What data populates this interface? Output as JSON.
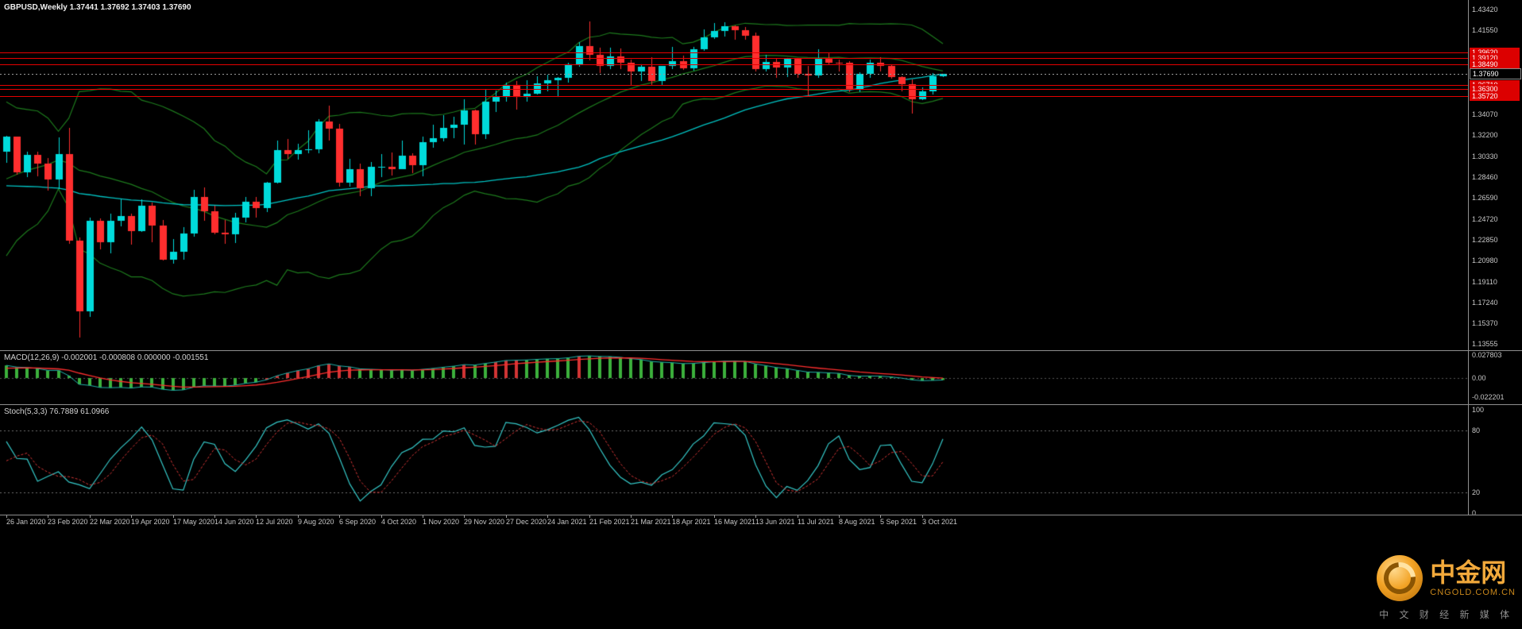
{
  "header": {
    "title": "GBPUSD,Weekly  1.37441 1.37692 1.37403 1.37690"
  },
  "panels": {
    "macd": {
      "label": "MACD(12,26,9) -0.002001 -0.000808 0.000000 -0.001551",
      "axis": [
        "0.027803",
        "0.00",
        "-0.022201"
      ]
    },
    "stoch": {
      "label": "Stoch(5,3,3) 76.7889 61.0966",
      "axis": [
        "100",
        "80",
        "20",
        "0"
      ]
    }
  },
  "watermark": {
    "brand": "中金网",
    "site": "CNGOLD.COM.CN",
    "tagline": "中 文 财 经 新 媒 体"
  },
  "colors": {
    "bull": "#00DBDB",
    "bear": "#FF2E2E",
    "band": "#1D7A1D",
    "ma": "#00C4C4",
    "level": "#E60000",
    "text": "#C8C8C8",
    "bg": "#000000",
    "macd_up": "#3CB03C",
    "macd_down": "#D23535",
    "macd_main": "#20B2AA",
    "signal": "#FF2E2E",
    "stoch_k": "#35C9C9",
    "stoch_d": "#D23535"
  },
  "chart_data": {
    "type": "candlestick",
    "symbol": "GBPUSD",
    "timeframe": "Weekly",
    "current": {
      "open": 1.37441,
      "high": 1.37692,
      "low": 1.37403,
      "close": 1.3769
    },
    "bid": 1.3769,
    "bid_label": "1.37690",
    "price_range": [
      1.13555,
      1.4342
    ],
    "price_ticks": [
      "1.43420",
      "1.41550",
      "1.39680",
      "1.37810",
      "1.35940",
      "1.34070",
      "1.32200",
      "1.30330",
      "1.28460",
      "1.26590",
      "1.24720",
      "1.22850",
      "1.20980",
      "1.19110",
      "1.17240",
      "1.15370",
      "1.13555"
    ],
    "red_levels": [
      1.3962,
      1.3912,
      1.3849,
      1.3671,
      1.363,
      1.3572
    ],
    "x_labels": [
      "26 Jan 2020",
      "23 Feb 2020",
      "22 Mar 2020",
      "19 Apr 2020",
      "17 May 2020",
      "14 Jun 2020",
      "12 Jul 2020",
      "9 Aug 2020",
      "6 Sep 2020",
      "4 Oct 2020",
      "1 Nov 2020",
      "29 Nov 2020",
      "27 Dec 2020",
      "24 Jan 2021",
      "21 Feb 2021",
      "21 Mar 2021",
      "18 Apr 2021",
      "16 May 2021",
      "13 Jun 2021",
      "11 Jul 2021",
      "8 Aug 2021",
      "5 Sep 2021",
      "3 Oct 2021"
    ],
    "x_label_step": 4,
    "candles": [
      [
        1.307,
        1.3215,
        1.2975,
        1.3205
      ],
      [
        1.3205,
        1.321,
        1.287,
        1.289
      ],
      [
        1.289,
        1.307,
        1.2845,
        1.3045
      ],
      [
        1.3045,
        1.307,
        1.285,
        1.2965
      ],
      [
        1.2965,
        1.3015,
        1.2725,
        1.2825
      ],
      [
        1.2825,
        1.32,
        1.274,
        1.305
      ],
      [
        1.305,
        1.3285,
        1.225,
        1.228
      ],
      [
        1.228,
        1.2305,
        1.1412,
        1.1645
      ],
      [
        1.1645,
        1.2485,
        1.16,
        1.2455
      ],
      [
        1.2455,
        1.2475,
        1.22,
        1.2265
      ],
      [
        1.2265,
        1.252,
        1.2165,
        1.2455
      ],
      [
        1.2455,
        1.2645,
        1.2405,
        1.25
      ],
      [
        1.25,
        1.252,
        1.2245,
        1.2365
      ],
      [
        1.2365,
        1.2645,
        1.2355,
        1.259
      ],
      [
        1.259,
        1.262,
        1.2265,
        1.241
      ],
      [
        1.241,
        1.2465,
        1.21,
        1.211
      ],
      [
        1.211,
        1.2295,
        1.2075,
        1.2175
      ],
      [
        1.2175,
        1.2395,
        1.211,
        1.2345
      ],
      [
        1.2345,
        1.273,
        1.2315,
        1.267
      ],
      [
        1.267,
        1.2755,
        1.2455,
        1.254
      ],
      [
        1.254,
        1.259,
        1.2335,
        1.235
      ],
      [
        1.235,
        1.246,
        1.225,
        1.2335
      ],
      [
        1.2335,
        1.2525,
        1.2258,
        1.248
      ],
      [
        1.248,
        1.267,
        1.244,
        1.2625
      ],
      [
        1.2625,
        1.2665,
        1.248,
        1.2565
      ],
      [
        1.2565,
        1.2805,
        1.253,
        1.2795
      ],
      [
        1.2795,
        1.317,
        1.279,
        1.3085
      ],
      [
        1.3085,
        1.3185,
        1.3005,
        1.305
      ],
      [
        1.305,
        1.3145,
        1.3,
        1.3085
      ],
      [
        1.3085,
        1.3265,
        1.306,
        1.309
      ],
      [
        1.309,
        1.336,
        1.3055,
        1.3345
      ],
      [
        1.3345,
        1.3482,
        1.3175,
        1.328
      ],
      [
        1.328,
        1.332,
        1.276,
        1.2795
      ],
      [
        1.2795,
        1.3008,
        1.2762,
        1.2915
      ],
      [
        1.2915,
        1.2967,
        1.2675,
        1.2745
      ],
      [
        1.2745,
        1.298,
        1.2675,
        1.2935
      ],
      [
        1.2935,
        1.305,
        1.2845,
        1.294
      ],
      [
        1.294,
        1.3065,
        1.286,
        1.2915
      ],
      [
        1.2915,
        1.3175,
        1.2915,
        1.304
      ],
      [
        1.304,
        1.306,
        1.288,
        1.295
      ],
      [
        1.295,
        1.3205,
        1.2855,
        1.3155
      ],
      [
        1.3155,
        1.331,
        1.3105,
        1.319
      ],
      [
        1.319,
        1.34,
        1.3165,
        1.3285
      ],
      [
        1.3285,
        1.3385,
        1.3195,
        1.331
      ],
      [
        1.331,
        1.354,
        1.3135,
        1.344
      ],
      [
        1.344,
        1.3445,
        1.3135,
        1.3225
      ],
      [
        1.3225,
        1.3625,
        1.3185,
        1.352
      ],
      [
        1.352,
        1.362,
        1.343,
        1.3565
      ],
      [
        1.3565,
        1.3686,
        1.352,
        1.367
      ],
      [
        1.367,
        1.3705,
        1.345,
        1.356
      ],
      [
        1.356,
        1.371,
        1.352,
        1.359
      ],
      [
        1.359,
        1.3745,
        1.358,
        1.3685
      ],
      [
        1.3685,
        1.376,
        1.361,
        1.371
      ],
      [
        1.371,
        1.3742,
        1.3565,
        1.373
      ],
      [
        1.373,
        1.3866,
        1.369,
        1.385
      ],
      [
        1.385,
        1.405,
        1.383,
        1.4015
      ],
      [
        1.4015,
        1.4237,
        1.389,
        1.3935
      ],
      [
        1.3935,
        1.4005,
        1.3775,
        1.384
      ],
      [
        1.384,
        1.4,
        1.381,
        1.3925
      ],
      [
        1.3925,
        1.3995,
        1.381,
        1.387
      ],
      [
        1.387,
        1.3898,
        1.367,
        1.379
      ],
      [
        1.379,
        1.385,
        1.3705,
        1.383
      ],
      [
        1.383,
        1.3918,
        1.3665,
        1.3705
      ],
      [
        1.3705,
        1.3835,
        1.3668,
        1.3835
      ],
      [
        1.3835,
        1.4008,
        1.381,
        1.388
      ],
      [
        1.388,
        1.393,
        1.38,
        1.382
      ],
      [
        1.382,
        1.401,
        1.3795,
        1.3985
      ],
      [
        1.3985,
        1.4166,
        1.397,
        1.4095
      ],
      [
        1.4095,
        1.422,
        1.408,
        1.415
      ],
      [
        1.415,
        1.4232,
        1.41,
        1.419
      ],
      [
        1.419,
        1.42,
        1.407,
        1.4155
      ],
      [
        1.4155,
        1.4188,
        1.4072,
        1.411
      ],
      [
        1.411,
        1.4135,
        1.379,
        1.381
      ],
      [
        1.381,
        1.394,
        1.3786,
        1.3875
      ],
      [
        1.3875,
        1.39,
        1.373,
        1.3825
      ],
      [
        1.3825,
        1.391,
        1.374,
        1.39
      ],
      [
        1.39,
        1.3912,
        1.3735,
        1.3765
      ],
      [
        1.3765,
        1.3835,
        1.3572,
        1.375
      ],
      [
        1.375,
        1.3985,
        1.3735,
        1.3905
      ],
      [
        1.3905,
        1.395,
        1.385,
        1.387
      ],
      [
        1.387,
        1.3893,
        1.379,
        1.3865
      ],
      [
        1.3865,
        1.388,
        1.3602,
        1.3625
      ],
      [
        1.3625,
        1.378,
        1.3605,
        1.3765
      ],
      [
        1.3765,
        1.3892,
        1.373,
        1.387
      ],
      [
        1.387,
        1.3913,
        1.379,
        1.384
      ],
      [
        1.384,
        1.3852,
        1.3725,
        1.374
      ],
      [
        1.374,
        1.3748,
        1.3608,
        1.3672
      ],
      [
        1.3672,
        1.3715,
        1.3412,
        1.3543
      ],
      [
        1.3543,
        1.3648,
        1.353,
        1.3614
      ],
      [
        1.3614,
        1.3774,
        1.3585,
        1.3748
      ],
      [
        1.37441,
        1.37692,
        1.37403,
        1.3769
      ]
    ],
    "pre_closes": [
      1.2895,
      1.3045,
      1.32,
      1.3105,
      1.3205,
      1.3295,
      1.32,
      1.31,
      1.304,
      1.298,
      1.3,
      1.3075,
      1.292,
      1.285,
      1.272,
      1.2715,
      1.266,
      1.273,
      1.272,
      1.259,
      1.252,
      1.2475,
      1.239,
      1.252,
      1.258,
      1.2385,
      1.216,
      1.2065,
      1.2145,
      1.228,
      1.215,
      1.207,
      1.2335,
      1.247,
      1.229,
      1.2245,
      1.282,
      1.294,
      1.283,
      1.291,
      1.288,
      1.303,
      1.2895,
      1.3335,
      1.3,
      1.311,
      1.3075,
      1.3005,
      1.307,
      1.3075
    ],
    "indicators": {
      "bollinger": {
        "period": 20,
        "deviation": 2
      },
      "ma": {
        "period": 50,
        "method": "simple"
      },
      "macd": {
        "fast": 12,
        "slow": 26,
        "signal": 9
      },
      "stochastic": {
        "k": 5,
        "d": 3,
        "slowing": 3,
        "values": [
          76.7889,
          61.0966
        ],
        "levels": [
          80,
          20
        ]
      }
    }
  }
}
